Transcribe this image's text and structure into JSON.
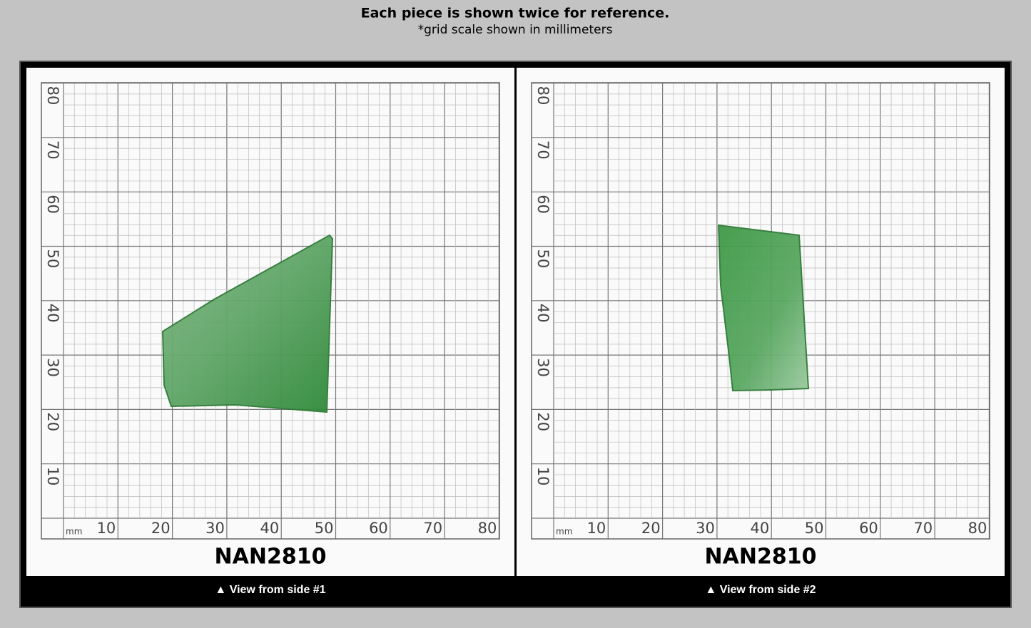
{
  "header": {
    "title": "Each piece is shown twice for reference.",
    "subtitle": "*grid scale shown in millimeters"
  },
  "panels": [
    {
      "code": "NAN2810",
      "caption": "▲ View from side #1",
      "grid": {
        "unit": "mm",
        "x_labels": [
          "10",
          "20",
          "30",
          "40",
          "50",
          "60",
          "70",
          "80"
        ],
        "y_labels": [
          "10",
          "20",
          "30",
          "40",
          "50",
          "60",
          "70",
          "80"
        ]
      }
    },
    {
      "code": "NAN2810",
      "caption": "▲ View from side #2",
      "grid": {
        "unit": "mm",
        "x_labels": [
          "10",
          "20",
          "30",
          "40",
          "50",
          "60",
          "70",
          "80"
        ],
        "y_labels": [
          "10",
          "20",
          "30",
          "40",
          "50",
          "60",
          "70",
          "80"
        ]
      }
    }
  ]
}
